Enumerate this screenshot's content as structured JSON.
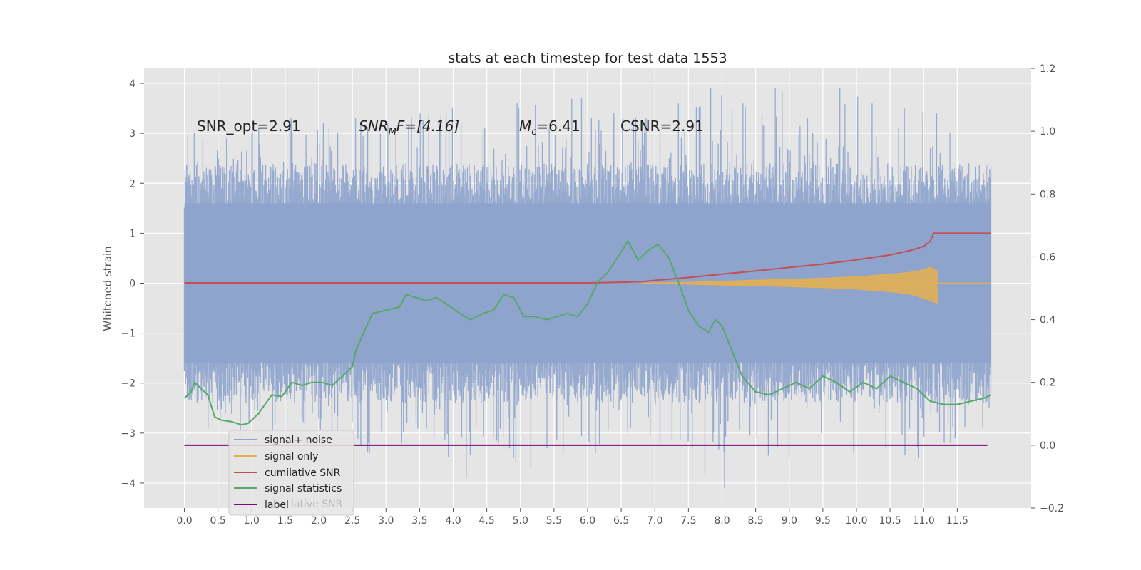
{
  "chart_data": {
    "type": "line",
    "title": "stats at each timestep for test data 1553",
    "ylabel": "Whitened strain",
    "xlabel": "",
    "xlim": [
      -0.6,
      12.6
    ],
    "ylim": [
      -4.5,
      4.3
    ],
    "y2lim": [
      -0.2,
      1.2
    ],
    "grid": true,
    "legend_position": "lower-left",
    "x_ticks": [
      "0.0",
      "0.5",
      "1.0",
      "1.5",
      "2.0",
      "2.5",
      "3.0",
      "3.5",
      "4.0",
      "4.5",
      "5.0",
      "5.5",
      "6.0",
      "6.5",
      "7.0",
      "7.5",
      "8.0",
      "8.5",
      "9.0",
      "9.5",
      "10.0",
      "10.5",
      "11.0",
      "11.5"
    ],
    "y_ticks": [
      "4",
      "3",
      "2",
      "1",
      "0",
      "−1",
      "−2",
      "−3",
      "−4"
    ],
    "y2_ticks": [
      "1.2",
      "1.0",
      "0.8",
      "0.6",
      "0.4",
      "0.2",
      "0.0",
      "−0.2"
    ],
    "annotations": {
      "snr_opt": "SNR_opt=2.91",
      "snr_mf_base": "SNR",
      "snr_mf_sub": "M",
      "snr_mf_rest": "F=[4.16]",
      "mc_base": "M",
      "mc_sub": "c",
      "mc_rest": "=6.41",
      "csnr": "CSNR=2.91"
    },
    "noise_envelope": {
      "x": [
        0.0,
        12.0
      ],
      "upper_typical": 2.0,
      "lower_typical": -2.0,
      "upper_peaks": [
        3.0,
        2.9,
        3.1,
        3.3,
        3.2,
        3.3,
        3.2,
        3.4,
        3.5,
        3.1,
        3.6,
        3.1,
        3.7,
        3.4,
        3.3,
        3.6,
        3.9,
        3.6,
        3.9,
        3.3,
        3.9,
        3.6,
        3.5,
        3.4,
        2.4
      ],
      "lower_peaks": [
        -2.9,
        -3.1,
        -3.0,
        -2.8,
        -3.0,
        -3.4,
        -3.2,
        -3.1,
        -3.9,
        -3.2,
        -3.7,
        -3.4,
        -3.4,
        -3.0,
        -3.2,
        -3.3,
        -4.1,
        -3.1,
        -3.5,
        -3.0,
        -3.4,
        -3.3,
        -3.5,
        -3.2,
        -2.9
      ]
    },
    "series": [
      {
        "name": "signal+ noise",
        "color": "#8da3cc",
        "axis": "left"
      },
      {
        "name": "signal only",
        "color": "#e6b04d",
        "axis": "left",
        "x": [
          6.8,
          7.5,
          8.0,
          8.5,
          9.0,
          9.5,
          10.0,
          10.5,
          10.8,
          11.0,
          11.1,
          11.2,
          11.2,
          11.1,
          11.0,
          10.8,
          10.5,
          10.0,
          9.5,
          9.0,
          8.5,
          8.0,
          7.5,
          6.8
        ],
        "values": [
          0.0,
          0.02,
          0.04,
          0.06,
          0.08,
          0.1,
          0.13,
          0.18,
          0.22,
          0.27,
          0.32,
          0.25,
          -0.4,
          -0.35,
          -0.3,
          -0.22,
          -0.17,
          -0.12,
          -0.09,
          -0.07,
          -0.05,
          -0.04,
          -0.02,
          0.0
        ]
      },
      {
        "name": "cumilative SNR",
        "color": "#c44e52",
        "axis": "right",
        "x": [
          0.0,
          1.0,
          2.0,
          3.0,
          4.0,
          5.0,
          6.0,
          6.5,
          6.8,
          7.0,
          7.5,
          8.0,
          8.5,
          9.0,
          9.5,
          10.0,
          10.5,
          10.8,
          11.0,
          11.1,
          11.15,
          11.5,
          12.0
        ],
        "values": [
          0.517,
          0.517,
          0.517,
          0.517,
          0.517,
          0.517,
          0.517,
          0.519,
          0.521,
          0.525,
          0.534,
          0.545,
          0.555,
          0.566,
          0.577,
          0.59,
          0.606,
          0.62,
          0.633,
          0.65,
          0.675,
          0.675,
          0.675
        ]
      },
      {
        "name": "signal statistics",
        "color": "#55a868",
        "axis": "right",
        "x": [
          0.0,
          0.1,
          0.15,
          0.2,
          0.35,
          0.45,
          0.55,
          0.7,
          0.85,
          0.95,
          1.1,
          1.2,
          1.3,
          1.45,
          1.6,
          1.75,
          1.9,
          2.05,
          2.2,
          2.35,
          2.5,
          2.55,
          2.65,
          2.8,
          3.0,
          3.2,
          3.3,
          3.45,
          3.6,
          3.75,
          3.9,
          4.1,
          4.25,
          4.45,
          4.6,
          4.75,
          4.9,
          5.05,
          5.2,
          5.4,
          5.55,
          5.7,
          5.85,
          6.0,
          6.15,
          6.3,
          6.45,
          6.6,
          6.75,
          6.9,
          7.05,
          7.2,
          7.35,
          7.5,
          7.65,
          7.8,
          7.9,
          8.0,
          8.15,
          8.3,
          8.5,
          8.7,
          8.9,
          9.1,
          9.3,
          9.5,
          9.7,
          9.9,
          10.1,
          10.3,
          10.5,
          10.7,
          10.9,
          11.1,
          11.3,
          11.5,
          11.7,
          11.9,
          12.0
        ],
        "values": [
          0.15,
          0.17,
          0.2,
          0.19,
          0.16,
          0.09,
          0.08,
          0.075,
          0.065,
          0.07,
          0.1,
          0.13,
          0.16,
          0.155,
          0.2,
          0.19,
          0.2,
          0.2,
          0.19,
          0.22,
          0.25,
          0.3,
          0.35,
          0.42,
          0.43,
          0.44,
          0.48,
          0.47,
          0.46,
          0.47,
          0.45,
          0.42,
          0.4,
          0.42,
          0.43,
          0.48,
          0.47,
          0.41,
          0.41,
          0.4,
          0.41,
          0.42,
          0.41,
          0.45,
          0.52,
          0.55,
          0.6,
          0.65,
          0.59,
          0.62,
          0.64,
          0.6,
          0.52,
          0.43,
          0.38,
          0.36,
          0.4,
          0.38,
          0.3,
          0.22,
          0.17,
          0.16,
          0.18,
          0.2,
          0.18,
          0.22,
          0.2,
          0.17,
          0.2,
          0.18,
          0.22,
          0.2,
          0.18,
          0.14,
          0.13,
          0.13,
          0.14,
          0.15,
          0.16
        ]
      },
      {
        "name": "label",
        "color": "#7b0a7b",
        "axis": "right",
        "x": [
          0.0,
          11.95
        ],
        "values": [
          0.0,
          0.0
        ]
      }
    ],
    "legend_overlap_text": "lative SNR"
  }
}
